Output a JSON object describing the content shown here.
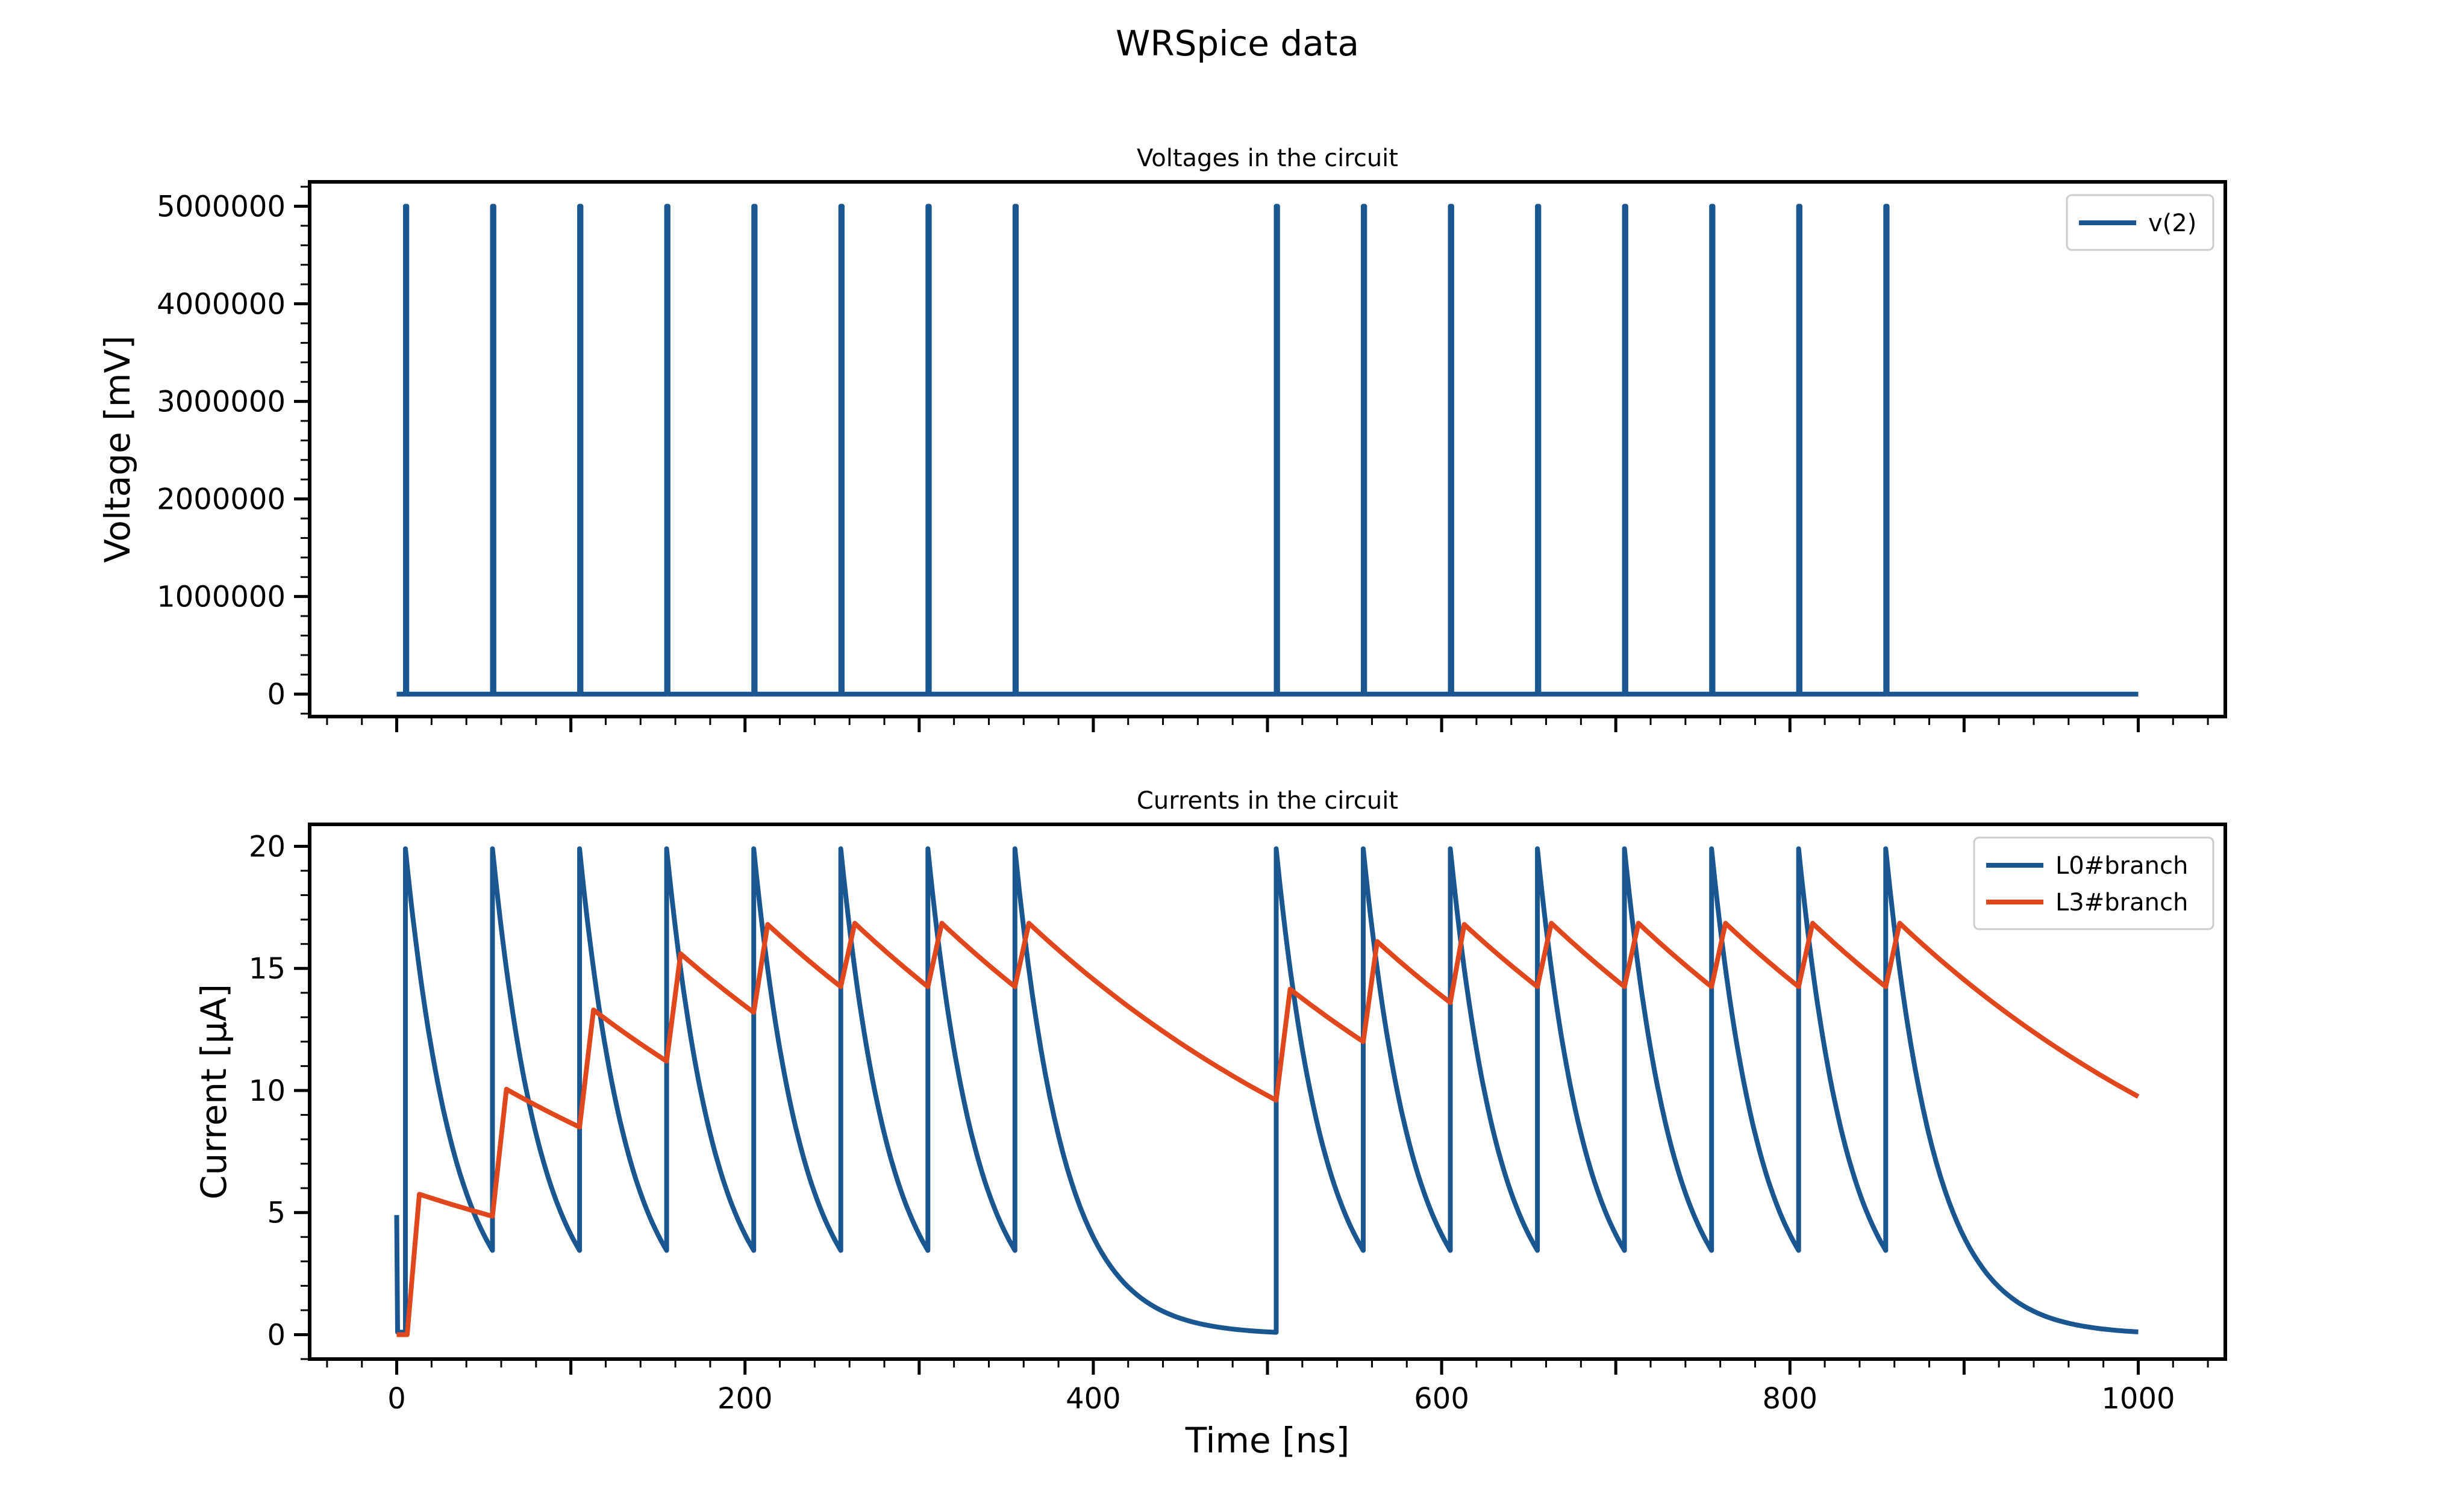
{
  "figure": {
    "title": "WRSpice data"
  },
  "colors": {
    "voltage": "#1a5690",
    "l0": "#1a5690",
    "l3": "#e0471c",
    "axis": "#000000"
  },
  "chart_data": [
    {
      "type": "line",
      "title": "Voltages in the circuit",
      "xlabel": "",
      "ylabel": "Voltage [mV]",
      "xlim": [
        -50,
        1050
      ],
      "ylim": [
        -230000,
        5250000
      ],
      "xticks": [
        0,
        200,
        400,
        600,
        800,
        1000
      ],
      "xtick_labels_visible": false,
      "yticks": [
        0,
        1000000,
        2000000,
        3000000,
        4000000,
        5000000
      ],
      "ytick_labels": [
        "0",
        "1000000",
        "2000000",
        "3000000",
        "4000000",
        "5000000"
      ],
      "grid": false,
      "legend": "top-right",
      "pulse_times": [
        5,
        55,
        105,
        155,
        205,
        255,
        305,
        355,
        505,
        555,
        605,
        655,
        705,
        755,
        805,
        855
      ],
      "series": [
        {
          "name": "v(2)",
          "shape": "spikes",
          "baseline": 0,
          "peak": 5000000,
          "x_range": [
            0,
            1000
          ]
        }
      ]
    },
    {
      "type": "line",
      "title": "Currents in the circuit",
      "xlabel": "Time [ns]",
      "ylabel": "Current [μA]",
      "xlim": [
        -50,
        1050
      ],
      "ylim": [
        -1,
        20.9
      ],
      "xticks": [
        0,
        200,
        400,
        600,
        800,
        1000
      ],
      "xtick_labels": [
        "0",
        "200",
        "400",
        "600",
        "800",
        "1000"
      ],
      "yticks": [
        0,
        5,
        10,
        15,
        20
      ],
      "ytick_labels": [
        "0",
        "5",
        "10",
        "15",
        "20"
      ],
      "grid": false,
      "legend": "top-right",
      "series": [
        {
          "name": "L0#branch",
          "shape": "pulse-decay",
          "initial": {
            "x": 0,
            "y": 4.9
          },
          "peak": 19.9,
          "decay_floor": 3.45,
          "long_gap_end": {
            "x": 505,
            "y": 0.15
          },
          "end": {
            "x": 1000,
            "y": 0.15
          },
          "tau_ns": 28
        },
        {
          "name": "L3#branch",
          "shape": "staircase",
          "points_before_pulse": [
            {
              "x": 55,
              "y": 4.85
            },
            {
              "x": 105,
              "y": 8.5
            },
            {
              "x": 155,
              "y": 11.2
            },
            {
              "x": 205,
              "y": 13.2
            },
            {
              "x": 255,
              "y": 14.25
            },
            {
              "x": 305,
              "y": 14.25
            },
            {
              "x": 355,
              "y": 14.25
            },
            {
              "x": 505,
              "y": 9.6
            },
            {
              "x": 555,
              "y": 12.0
            },
            {
              "x": 605,
              "y": 13.6
            },
            {
              "x": 655,
              "y": 14.25
            },
            {
              "x": 705,
              "y": 14.25
            },
            {
              "x": 755,
              "y": 14.25
            },
            {
              "x": 805,
              "y": 14.25
            },
            {
              "x": 855,
              "y": 14.25
            },
            {
              "x": 1000,
              "y": 9.75
            }
          ],
          "peaks": [
            {
              "x": 13,
              "y": 5.75
            },
            {
              "x": 63,
              "y": 10.05
            },
            {
              "x": 113,
              "y": 13.3
            },
            {
              "x": 163,
              "y": 15.6
            },
            {
              "x": 213,
              "y": 16.8
            },
            {
              "x": 263,
              "y": 16.85
            },
            {
              "x": 313,
              "y": 16.85
            },
            {
              "x": 363,
              "y": 16.85
            },
            {
              "x": 513,
              "y": 14.15
            },
            {
              "x": 563,
              "y": 16.1
            },
            {
              "x": 613,
              "y": 16.8
            },
            {
              "x": 663,
              "y": 16.85
            },
            {
              "x": 713,
              "y": 16.85
            },
            {
              "x": 763,
              "y": 16.85
            },
            {
              "x": 813,
              "y": 16.85
            },
            {
              "x": 863,
              "y": 16.85
            }
          ]
        }
      ]
    }
  ]
}
